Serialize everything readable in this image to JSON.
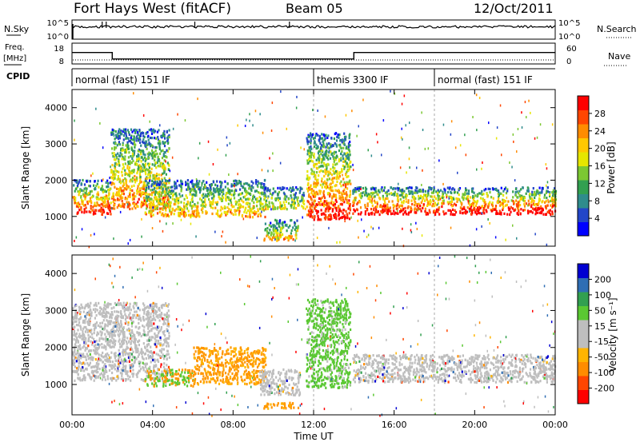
{
  "header": {
    "station": "Fort Hays West (fitACF)",
    "beam": "Beam 05",
    "date": "12/Oct/2011"
  },
  "top_panels": {
    "nsky_label": "N.Sky",
    "nsearch_label": "N.Search",
    "nsky_ticks": [
      "10^5",
      "10^0"
    ],
    "nsearch_ticks": [
      "10^5",
      "10^0"
    ],
    "freq_label": "Freq.",
    "freq_unit": "[MHz]",
    "freq_ticks": [
      "18",
      "8"
    ],
    "nave_label": "Nave",
    "nave_ticks": [
      "60",
      "0"
    ],
    "cpid_label": "CPID",
    "cpid_segments": [
      {
        "label": "normal (fast) 151 IF",
        "start": 0,
        "end": 12
      },
      {
        "label": "themis 3300 IF",
        "start": 12,
        "end": 18
      },
      {
        "label": "normal (fast) 151 IF",
        "start": 18,
        "end": 24
      }
    ],
    "freq_steps": [
      {
        "start": 0,
        "end": 2,
        "mhz": 14.5
      },
      {
        "start": 2,
        "end": 14,
        "mhz": 10.8
      },
      {
        "start": 14,
        "end": 24,
        "mhz": 14.5
      }
    ]
  },
  "chart_data": [
    {
      "type": "heatmap",
      "name": "power",
      "ylabel": "Slant Range [km]",
      "xlim": [
        0,
        24
      ],
      "ylim": [
        180,
        4500
      ],
      "yticks": [
        "1000",
        "2000",
        "3000",
        "4000"
      ],
      "colorbar_label": "Power [dB]",
      "colorbar_ticks": [
        "28",
        "24",
        "20",
        "16",
        "12",
        "8",
        "4"
      ],
      "colorbar_colors": [
        "#0000ff",
        "#2346c8",
        "#2f8c8c",
        "#32a050",
        "#7cc832",
        "#e6e600",
        "#ffc800",
        "#ff8c00",
        "#ff4600",
        "#ff0000"
      ],
      "echo_regions": [
        {
          "t0": 0.0,
          "t1": 1.9,
          "r_base": 1050,
          "r_top": 2000,
          "strength": 0.85
        },
        {
          "t0": 1.9,
          "t1": 4.8,
          "r_base": 1200,
          "r_top": 3400,
          "strength": 0.65
        },
        {
          "t0": 3.6,
          "t1": 9.6,
          "r_base": 980,
          "r_top": 2000,
          "strength": 0.55
        },
        {
          "t0": 9.3,
          "t1": 11.5,
          "r_base": 1200,
          "r_top": 1800,
          "strength": 0.4
        },
        {
          "t0": 9.5,
          "t1": 11.2,
          "r_base": 330,
          "r_top": 900,
          "strength": 0.55
        },
        {
          "t0": 11.6,
          "t1": 13.8,
          "r_base": 900,
          "r_top": 3300,
          "strength": 0.8
        },
        {
          "t0": 13.9,
          "t1": 24.0,
          "r_base": 1050,
          "r_top": 1800,
          "strength": 0.9
        }
      ]
    },
    {
      "type": "heatmap",
      "name": "velocity",
      "xlabel": "Time UT",
      "ylabel": "Slant Range [km]",
      "xlim": [
        0,
        24
      ],
      "ylim": [
        180,
        4500
      ],
      "xticks": [
        "00:00",
        "04:00",
        "08:00",
        "12:00",
        "16:00",
        "20:00",
        "00:00"
      ],
      "yticks": [
        "1000",
        "2000",
        "3000",
        "4000"
      ],
      "colorbar_label": "Velocity [m s⁻¹]",
      "colorbar_ticks": [
        "200",
        "100",
        "50",
        "15",
        "-15",
        "-50",
        "-100",
        "-200"
      ],
      "colorbar_colors": [
        "#ff0000",
        "#ff4600",
        "#ff8c00",
        "#ffb400",
        "#bebebe",
        "#bebebe",
        "#5ac832",
        "#32a050",
        "#2f6eb4",
        "#0000d2"
      ],
      "echo_regions": [
        {
          "t0": 0.0,
          "t1": 4.8,
          "r_base": 1100,
          "r_top": 3200,
          "color": "gray"
        },
        {
          "t0": 3.6,
          "t1": 6.0,
          "r_base": 950,
          "r_top": 1400,
          "color": "orange/green"
        },
        {
          "t0": 6.0,
          "t1": 9.6,
          "r_base": 1000,
          "r_top": 2000,
          "color": "orange"
        },
        {
          "t0": 9.3,
          "t1": 11.3,
          "r_base": 700,
          "r_top": 1400,
          "color": "gray"
        },
        {
          "t0": 9.5,
          "t1": 11.2,
          "r_base": 330,
          "r_top": 500,
          "color": "orange"
        },
        {
          "t0": 11.6,
          "t1": 13.8,
          "r_base": 900,
          "r_top": 3300,
          "color": "green"
        },
        {
          "t0": 13.9,
          "t1": 24.0,
          "r_base": 1050,
          "r_top": 1800,
          "color": "gray"
        }
      ]
    }
  ]
}
